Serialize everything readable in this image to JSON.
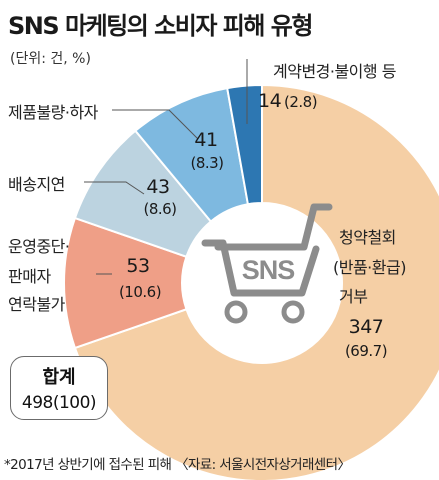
{
  "title": "SNS 마케팅의 소비자 피해 유형",
  "unit": "(단위: 건, %)",
  "total": {
    "label": "합계",
    "value": "498(100)"
  },
  "footnote": "*2017년 상반기에 접수된 피해 〈자료: 서울시전자상거래센터〉",
  "icon": {
    "name": "shopping-cart-icon",
    "text": "SNS"
  },
  "colors": {
    "background": "#ffffff",
    "cart": "#8c8c8c",
    "leader": "#555555"
  },
  "chart_data": {
    "type": "pie",
    "donut": true,
    "title": "SNS 마케팅의 소비자 피해 유형",
    "unit": "건, %",
    "total": 498,
    "slices": [
      {
        "label": "청약철회(반품·환급) 거부",
        "value": 347,
        "percent": 69.7,
        "color": "#f5cfa5"
      },
      {
        "label": "운영중단·판매자 연락불가",
        "value": 53,
        "percent": 10.6,
        "color": "#ef9f87"
      },
      {
        "label": "배송지연",
        "value": 43,
        "percent": 8.6,
        "color": "#bcd3e0"
      },
      {
        "label": "제품불량·하자",
        "value": 41,
        "percent": 8.3,
        "color": "#7eb9e0"
      },
      {
        "label": "계약변경·불이행 등",
        "value": 14,
        "percent": 2.8,
        "color": "#2d77b2"
      }
    ]
  }
}
